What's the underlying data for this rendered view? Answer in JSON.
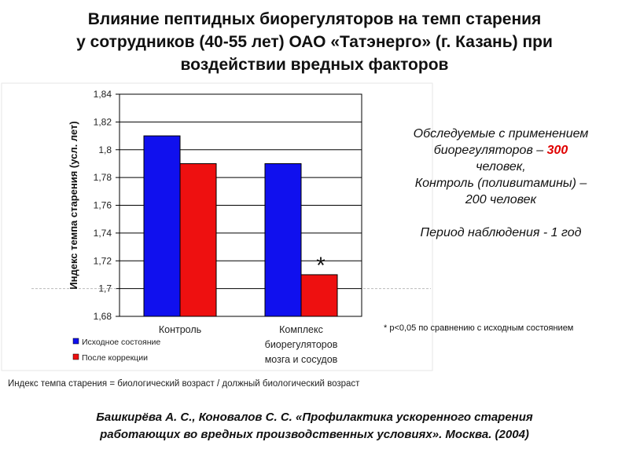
{
  "title_lines": [
    "Влияние пептидных биорегуляторов на темп старения",
    "у сотрудников (40-55 лет) ОАО «Татэнерго» (г. Казань) при",
    "воздействии вредных факторов"
  ],
  "info": {
    "line1": "Обследуемые с применением",
    "line2_prefix": "биорегуляторов – ",
    "line2_highlight": "300",
    "line3": "человек,",
    "line4": "Контроль (поливитамины) –",
    "line5": "200 человек",
    "line6": "Период наблюдения -  1 год"
  },
  "footnote": "* р<0,05 по сравнению с исходным состоянием",
  "formula": "Индекс темпа старения = биологический возраст / должный биологический возраст",
  "citation_lines": [
    "Башкирёва А. С., Коновалов С. С. «Профилактика ускоренного старения",
    "работающих во вредных производственных условиях». Москва. (2004)"
  ],
  "chart_data": {
    "type": "bar",
    "ylabel": "Индекс темпа старения (усл. лет)",
    "ylim": [
      1.68,
      1.84
    ],
    "yticks": [
      "1,68",
      "1,7",
      "1,72",
      "1,74",
      "1,76",
      "1,78",
      "1,8",
      "1,82",
      "1,84"
    ],
    "categories": [
      [
        "Контроль"
      ],
      [
        "Комплекс",
        "биорегуляторов",
        "мозга и сосудов"
      ]
    ],
    "series": [
      {
        "name": "Исходное состояние",
        "color": "#1010ee",
        "values": [
          1.81,
          1.79
        ]
      },
      {
        "name": "После коррекции",
        "color": "#ee1010",
        "values": [
          1.79,
          1.71
        ]
      }
    ],
    "annotations": [
      {
        "text": "*",
        "series": 1,
        "category": 1
      }
    ],
    "grid": true,
    "legend_position": "bottom-left"
  }
}
